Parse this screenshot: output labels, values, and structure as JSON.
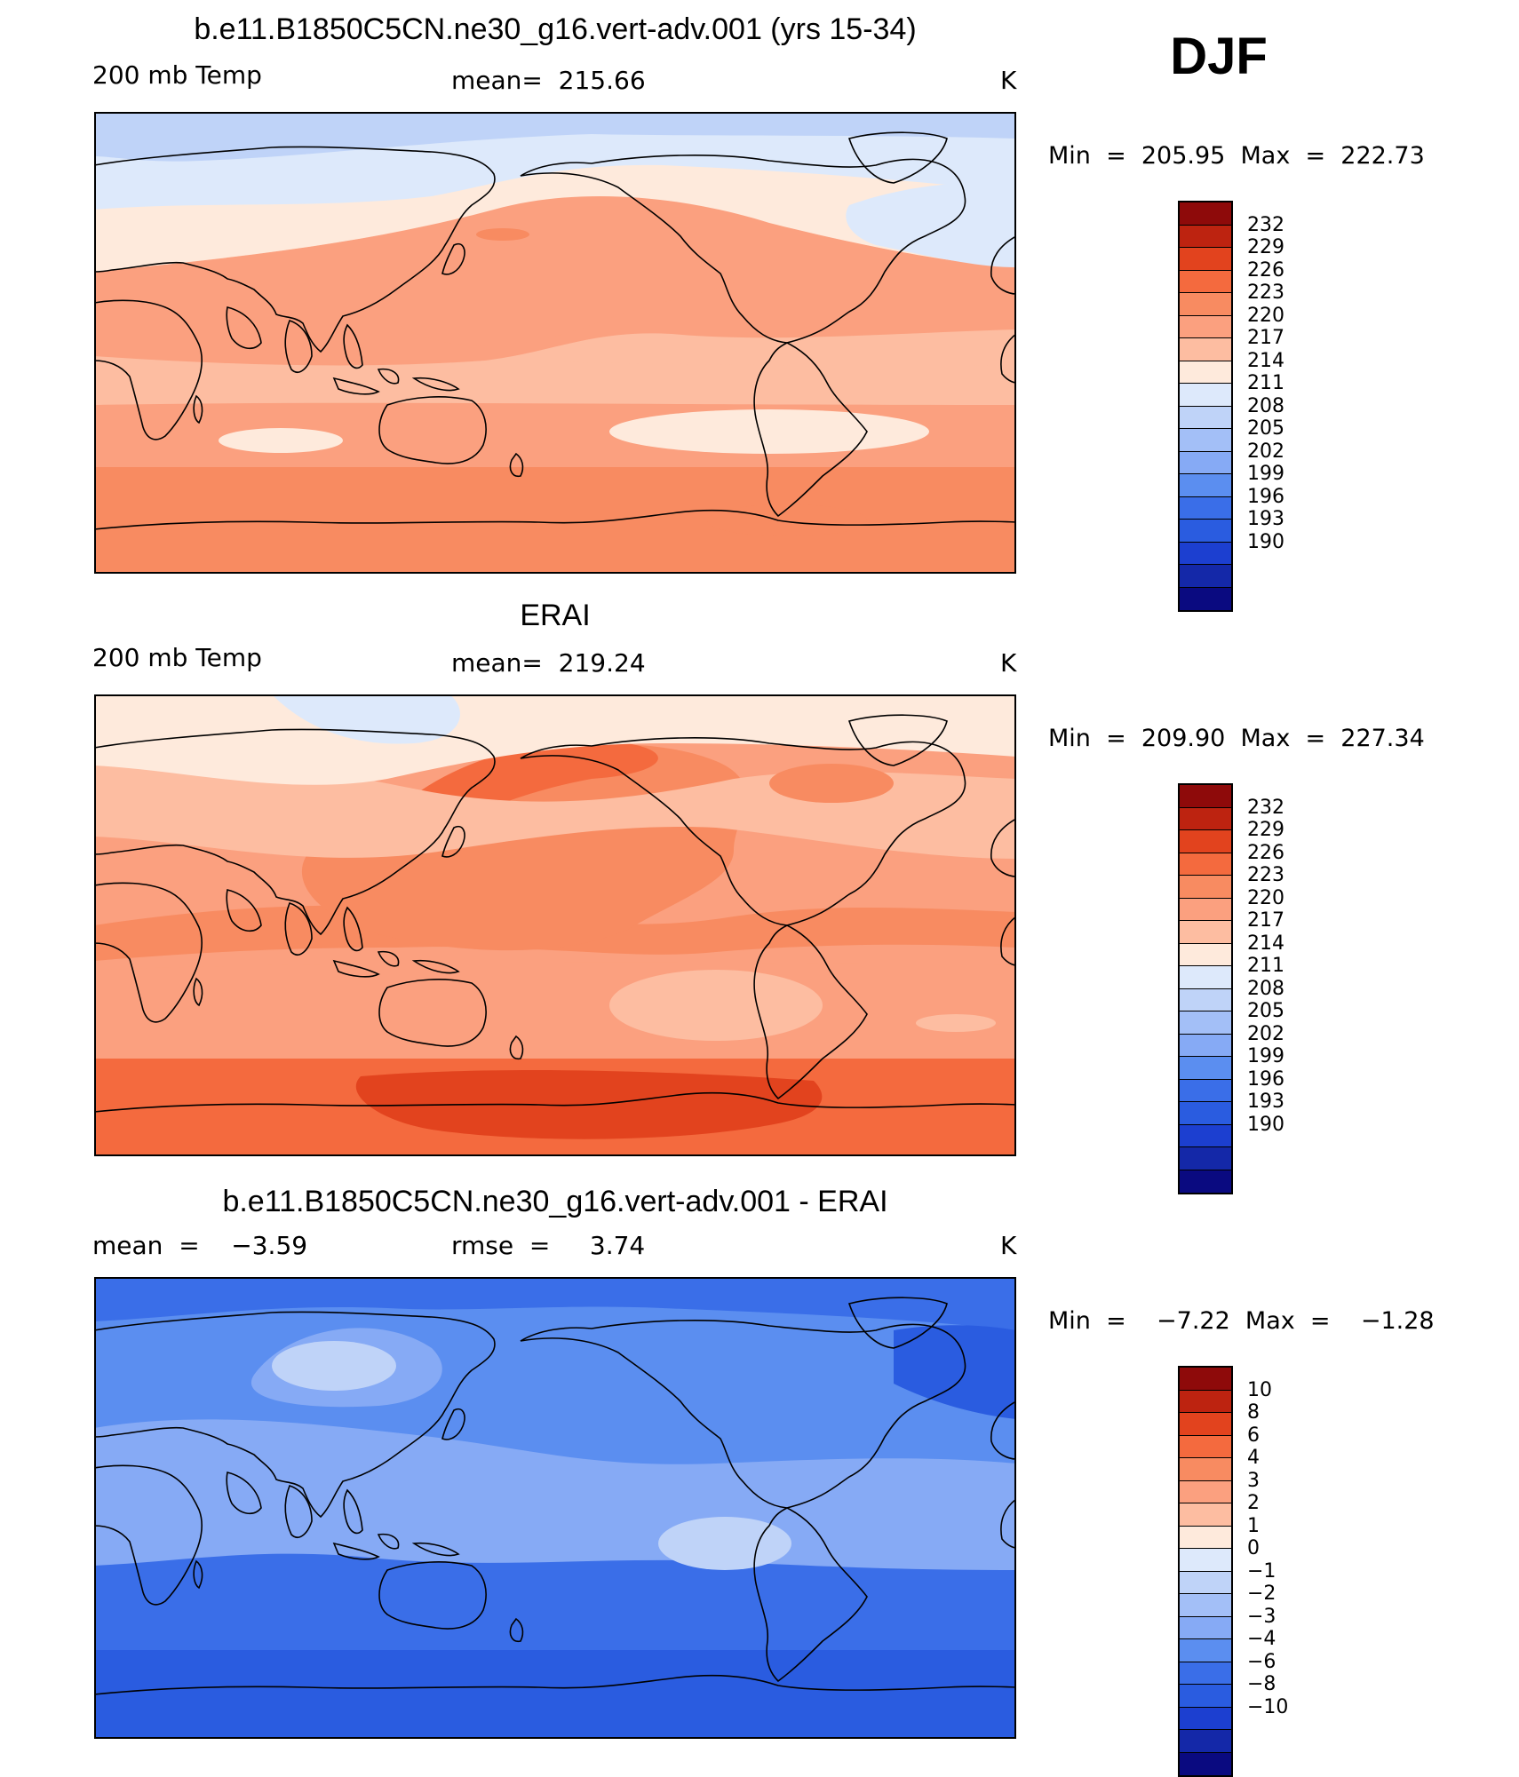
{
  "season": "DJF",
  "panels": [
    {
      "title": "b.e11.B1850C5CN.ne30_g16.vert-adv.001 (yrs 15-34)",
      "left_label": "200 mb Temp",
      "center_label": "mean=  215.66",
      "units": "K",
      "minmax": "Min  =  205.95  Max  =  222.73",
      "colorbar_labels": [
        "232",
        "229",
        "226",
        "223",
        "220",
        "217",
        "214",
        "211",
        "208",
        "205",
        "202",
        "199",
        "196",
        "193",
        "190"
      ],
      "field": {
        "background": "#fdbda1",
        "regions": [
          {
            "name": "south-polar-band",
            "color": "#f88b61"
          },
          {
            "name": "southern-midlat-band",
            "color": "#fba07f"
          },
          {
            "name": "southern-light-band",
            "color": "#fdbda1"
          },
          {
            "name": "south-pacific-pale-patch",
            "color": "#feeadc"
          },
          {
            "name": "indian-ocean-pale-patch",
            "color": "#feeadc"
          },
          {
            "name": "tropical-warm-belt",
            "color": "#fba07f"
          },
          {
            "name": "pacific-warm-tongue",
            "color": "#fba07f"
          },
          {
            "name": "north-pacific-warm-spot",
            "color": "#f88b61"
          },
          {
            "name": "antarctic-warm-spot",
            "color": "#f88b61"
          },
          {
            "name": "northern-pale-band",
            "color": "#feeadc"
          },
          {
            "name": "arctic-cold-band",
            "color": "#dde9fb"
          },
          {
            "name": "arctic-colder-band",
            "color": "#bfd3f8"
          },
          {
            "name": "north-atlantic-cold-patch",
            "color": "#dde9fb"
          }
        ]
      }
    },
    {
      "title": "ERAI",
      "left_label": "200 mb Temp",
      "center_label": "mean=  219.24",
      "units": "K",
      "minmax": "Min  =  209.90  Max  =  227.34",
      "colorbar_labels": [
        "232",
        "229",
        "226",
        "223",
        "220",
        "217",
        "214",
        "211",
        "208",
        "205",
        "202",
        "199",
        "196",
        "193",
        "190"
      ],
      "field": {
        "background": "#fba07f",
        "regions": [
          {
            "name": "south-polar-band",
            "color": "#f46a3e"
          },
          {
            "name": "antarctic-hot-patch",
            "color": "#e2431e"
          },
          {
            "name": "southern-midlat-band",
            "color": "#fba07f"
          },
          {
            "name": "south-pacific-light-patch",
            "color": "#fdbda1"
          },
          {
            "name": "south-atlantic-light-patch",
            "color": "#fdbda1"
          },
          {
            "name": "tropical-warm-belt",
            "color": "#f88b61"
          },
          {
            "name": "pacific-warm-region",
            "color": "#f88b61"
          },
          {
            "name": "north-pacific-hot-band",
            "color": "#f46a3e"
          },
          {
            "name": "northern-light-band",
            "color": "#fdbda1"
          },
          {
            "name": "northern-pale-band",
            "color": "#feeadc"
          },
          {
            "name": "siberia-cold-patch",
            "color": "#dde9fb"
          },
          {
            "name": "hudson-warm-patch",
            "color": "#f88b61"
          }
        ]
      }
    },
    {
      "title": "b.e11.B1850C5CN.ne30_g16.vert-adv.001 - ERAI",
      "left_label": "mean  =    −3.59",
      "center_label": "rmse  =     3.74",
      "units": "K",
      "minmax": "Min  =    −7.22  Max  =    −1.28",
      "colorbar_labels": [
        "10",
        "8",
        "6",
        "4",
        "3",
        "2",
        "1",
        "0",
        "−1",
        "−2",
        "−3",
        "−4",
        "−6",
        "−8",
        "−10"
      ],
      "field": {
        "background": "#5b8ef0",
        "regions": [
          {
            "name": "southern-deep-band",
            "color": "#3a6ee8"
          },
          {
            "name": "antarctic-deeper-band",
            "color": "#2a5ce0"
          },
          {
            "name": "tropical-light-belt",
            "color": "#86aaf5"
          },
          {
            "name": "south-pacific-pale-patch",
            "color": "#bfd3f8"
          },
          {
            "name": "central-asia-light-patch",
            "color": "#86aaf5"
          },
          {
            "name": "central-asia-pale-patch",
            "color": "#bfd3f8"
          },
          {
            "name": "arctic-deep-band",
            "color": "#3a6ee8"
          },
          {
            "name": "north-atlantic-deep-patch",
            "color": "#2a5ce0"
          },
          {
            "name": "indian-ocean-light-patch",
            "color": "#86aaf5"
          }
        ]
      }
    }
  ],
  "colorbar_colors": [
    "#8e0a0a",
    "#bd2310",
    "#e2431e",
    "#f46a3e",
    "#f88b61",
    "#fba07f",
    "#fdbda1",
    "#feeadc",
    "#dde9fb",
    "#bfd3f8",
    "#a3bff7",
    "#86aaf5",
    "#5b8ef0",
    "#3a6ee8",
    "#2a5ce0",
    "#1c3fd0",
    "#1428a8",
    "#0a0a80"
  ]
}
